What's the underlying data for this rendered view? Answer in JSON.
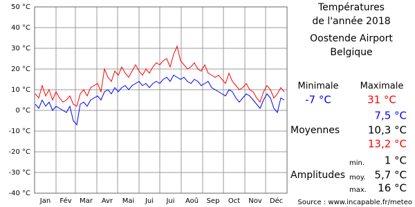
{
  "chart_data": {
    "type": "line",
    "title": "Températures de l'année 2018",
    "station": "Oostende Airport",
    "country": "Belgique",
    "xlim": [
      0,
      365
    ],
    "xgrid": [
      0,
      31,
      59,
      90,
      120,
      151,
      181,
      212,
      243,
      273,
      304,
      334,
      365
    ],
    "categories": [
      "Jan",
      "Fév",
      "Mar",
      "Avr",
      "Mai",
      "Jui",
      "Jui",
      "Aoû",
      "Sep",
      "Oct",
      "Nov",
      "Déc"
    ],
    "ylim": [
      -40,
      50
    ],
    "yticks": [
      {
        "value": -40,
        "label": "-40 °C"
      },
      {
        "value": -30,
        "label": "-30 °C"
      },
      {
        "value": -20,
        "label": "-20 °C"
      },
      {
        "value": -10,
        "label": "-10 °C"
      },
      {
        "value": 0,
        "label": "0 °C"
      },
      {
        "value": 10,
        "label": "10 °C"
      },
      {
        "value": 20,
        "label": "20 °C"
      },
      {
        "value": 30,
        "label": "30 °C"
      },
      {
        "value": 40,
        "label": "40 °C"
      },
      {
        "value": 50,
        "label": "50 °C"
      }
    ],
    "grid": true,
    "x": [
      1,
      6,
      11,
      16,
      21,
      26,
      31,
      36,
      41,
      46,
      51,
      56,
      61,
      66,
      71,
      76,
      81,
      86,
      91,
      96,
      101,
      106,
      111,
      116,
      121,
      126,
      131,
      136,
      141,
      146,
      151,
      156,
      161,
      166,
      171,
      176,
      181,
      186,
      191,
      196,
      201,
      206,
      211,
      216,
      221,
      226,
      231,
      236,
      241,
      246,
      251,
      256,
      261,
      266,
      271,
      276,
      281,
      286,
      291,
      296,
      301,
      306,
      311,
      316,
      321,
      326,
      331,
      336,
      341,
      346,
      351,
      356,
      361
    ],
    "series": [
      {
        "name": "Minimale",
        "color": "#0000ff",
        "values": [
          3,
          1,
          5,
          2,
          4,
          0,
          2,
          1,
          0,
          -1,
          2,
          -5,
          -7,
          3,
          4,
          2,
          5,
          6,
          7,
          5,
          9,
          10,
          8,
          11,
          9,
          11,
          12,
          10,
          12,
          13,
          14,
          12,
          13,
          11,
          13,
          14,
          13,
          15,
          16,
          14,
          17,
          16,
          15,
          16,
          14,
          13,
          15,
          14,
          12,
          13,
          14,
          11,
          10,
          9,
          8,
          7,
          10,
          9,
          6,
          4,
          6,
          8,
          7,
          5,
          3,
          1,
          5,
          8,
          6,
          1,
          -1,
          6,
          5
        ]
      },
      {
        "name": "Maximale",
        "color": "#ff0000",
        "values": [
          8,
          6,
          12,
          7,
          10,
          5,
          9,
          6,
          4,
          5,
          7,
          3,
          2,
          8,
          10,
          7,
          11,
          12,
          13,
          9,
          20,
          16,
          14,
          19,
          17,
          21,
          18,
          16,
          19,
          22,
          19,
          17,
          20,
          18,
          21,
          23,
          22,
          24,
          25,
          21,
          27,
          31,
          24,
          22,
          20,
          21,
          23,
          20,
          19,
          22,
          18,
          17,
          16,
          17,
          15,
          13,
          18,
          14,
          12,
          10,
          11,
          13,
          10,
          9,
          6,
          4,
          9,
          12,
          10,
          6,
          8,
          11,
          9
        ]
      }
    ],
    "summary": {
      "min_label": "Minimale",
      "max_label": "Maximale",
      "min": "-7 °C",
      "max": "31 °C",
      "avg_label": "Moyennes",
      "avg_min": "7,5 °C",
      "avg": "10,3 °C",
      "avg_max": "13,2 °C",
      "amp_label": "Amplitudes",
      "amp_min_label": "min.",
      "amp_min": "1 °C",
      "amp_avg_label": "moy.",
      "amp_avg": "5,7 °C",
      "amp_max_label": "max.",
      "amp_max": "16 °C"
    },
    "source": "Source : www.incapable.fr/meteo"
  }
}
